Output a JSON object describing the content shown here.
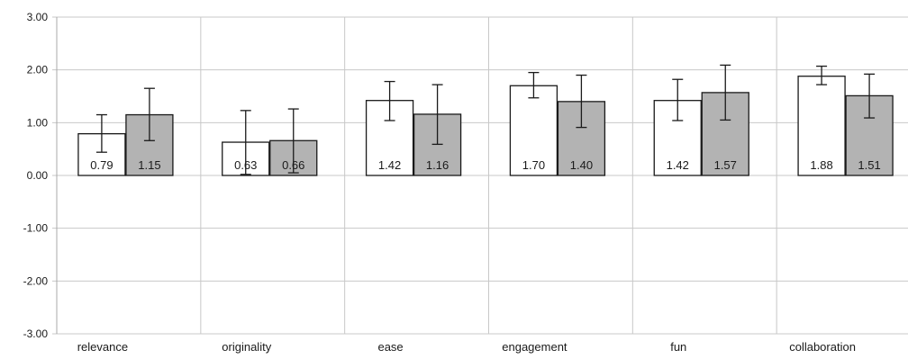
{
  "chart_data": {
    "type": "bar",
    "categories": [
      "relevance",
      "originality",
      "ease",
      "engagement",
      "fun",
      "collaboration"
    ],
    "series": [
      {
        "values": [
          0.79,
          0.63,
          1.42,
          1.7,
          1.42,
          1.88
        ],
        "error_low": [
          0.44,
          0.02,
          1.04,
          1.47,
          1.04,
          1.72
        ],
        "error_high": [
          1.15,
          1.23,
          1.78,
          1.95,
          1.82,
          2.07
        ],
        "color": "#ffffff"
      },
      {
        "values": [
          1.15,
          0.66,
          1.16,
          1.4,
          1.57,
          1.51
        ],
        "error_low": [
          0.66,
          0.05,
          0.59,
          0.91,
          1.05,
          1.09
        ],
        "error_high": [
          1.65,
          1.26,
          1.72,
          1.9,
          2.09,
          1.92
        ],
        "color": "#b3b3b3"
      }
    ],
    "data_labels": [
      [
        "0.79",
        "0.63",
        "1.42",
        "1.70",
        "1.42",
        "1.88"
      ],
      [
        "1.15",
        "0.66",
        "1.16",
        "1.40",
        "1.57",
        "1.51"
      ]
    ],
    "y_ticks": [
      "3.00",
      "2.00",
      "1.00",
      "0.00",
      "-1.00",
      "-2.00",
      "-3.00"
    ],
    "ylim": [
      -3,
      3
    ],
    "title": "",
    "xlabel": "",
    "ylabel": "",
    "grid": true,
    "legend": "none"
  }
}
